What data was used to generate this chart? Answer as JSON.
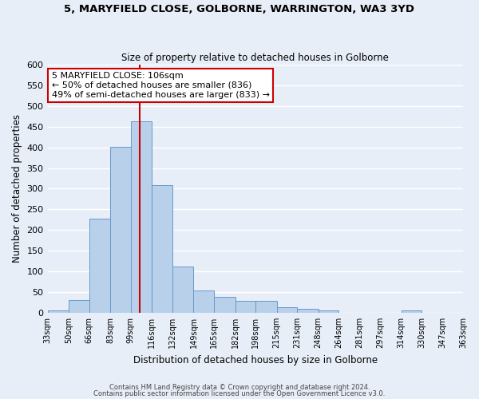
{
  "title": "5, MARYFIELD CLOSE, GOLBORNE, WARRINGTON, WA3 3YD",
  "subtitle": "Size of property relative to detached houses in Golborne",
  "xlabel": "Distribution of detached houses by size in Golborne",
  "ylabel": "Number of detached properties",
  "bin_edges": [
    33,
    50,
    66,
    83,
    99,
    116,
    132,
    149,
    165,
    182,
    198,
    215,
    231,
    248,
    264,
    281,
    297,
    314,
    330,
    347,
    363
  ],
  "bar_heights": [
    5,
    30,
    228,
    402,
    463,
    308,
    111,
    54,
    38,
    28,
    28,
    13,
    10,
    5,
    0,
    0,
    0,
    5,
    0,
    0
  ],
  "bar_color": "#b8d0ea",
  "bar_edge_color": "#6699cc",
  "vline_x": 106,
  "vline_color": "#cc0000",
  "ylim": [
    0,
    600
  ],
  "yticks": [
    0,
    50,
    100,
    150,
    200,
    250,
    300,
    350,
    400,
    450,
    500,
    550,
    600
  ],
  "annotation_title": "5 MARYFIELD CLOSE: 106sqm",
  "annotation_line1": "← 50% of detached houses are smaller (836)",
  "annotation_line2": "49% of semi-detached houses are larger (833) →",
  "annotation_box_color": "#ffffff",
  "annotation_box_edge": "#cc0000",
  "footnote1": "Contains HM Land Registry data © Crown copyright and database right 2024.",
  "footnote2": "Contains public sector information licensed under the Open Government Licence v3.0.",
  "background_color": "#e8eef8",
  "grid_color": "#ffffff"
}
